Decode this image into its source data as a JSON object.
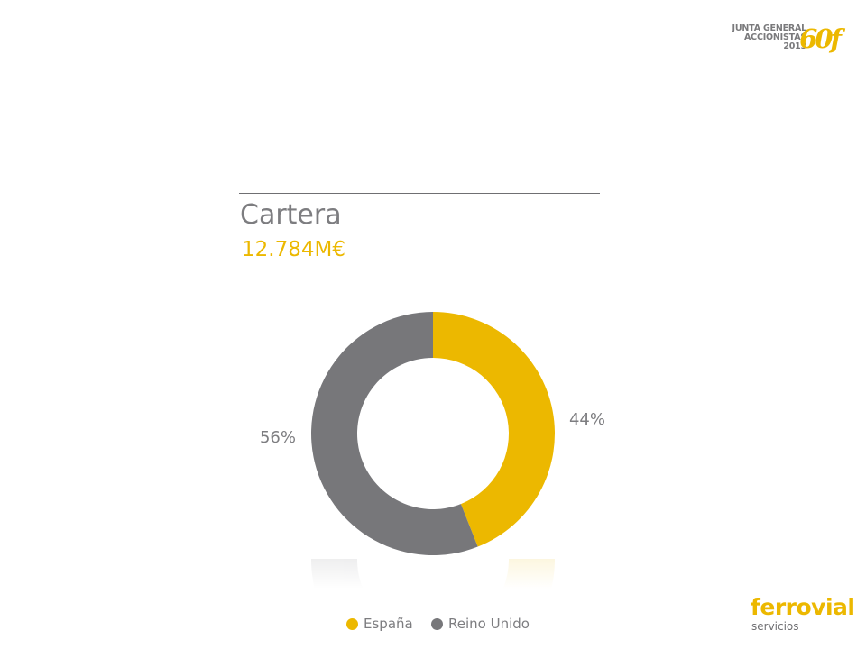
{
  "header_logo": {
    "line1": "JUNTA GENERAL",
    "line2": "ACCIONISTAS",
    "line3": "2013",
    "mark": "60f",
    "mark_color": "#ecb800"
  },
  "slide": {
    "title": "Cartera",
    "total": "12.784M€"
  },
  "colors": {
    "accent": "#ecb800",
    "secondary": "#77777a",
    "text": "#7d7d80"
  },
  "chart_data": {
    "type": "pie",
    "style": "donut",
    "slices": [
      {
        "label": "España",
        "value": 44,
        "display": "44%",
        "color": "#ecb800"
      },
      {
        "label": "Reino Unido",
        "value": 56,
        "display": "56%",
        "color": "#77777a"
      }
    ],
    "legend_position": "bottom"
  },
  "footer_logo": {
    "name": "ferrovial",
    "sub": "servicios"
  }
}
